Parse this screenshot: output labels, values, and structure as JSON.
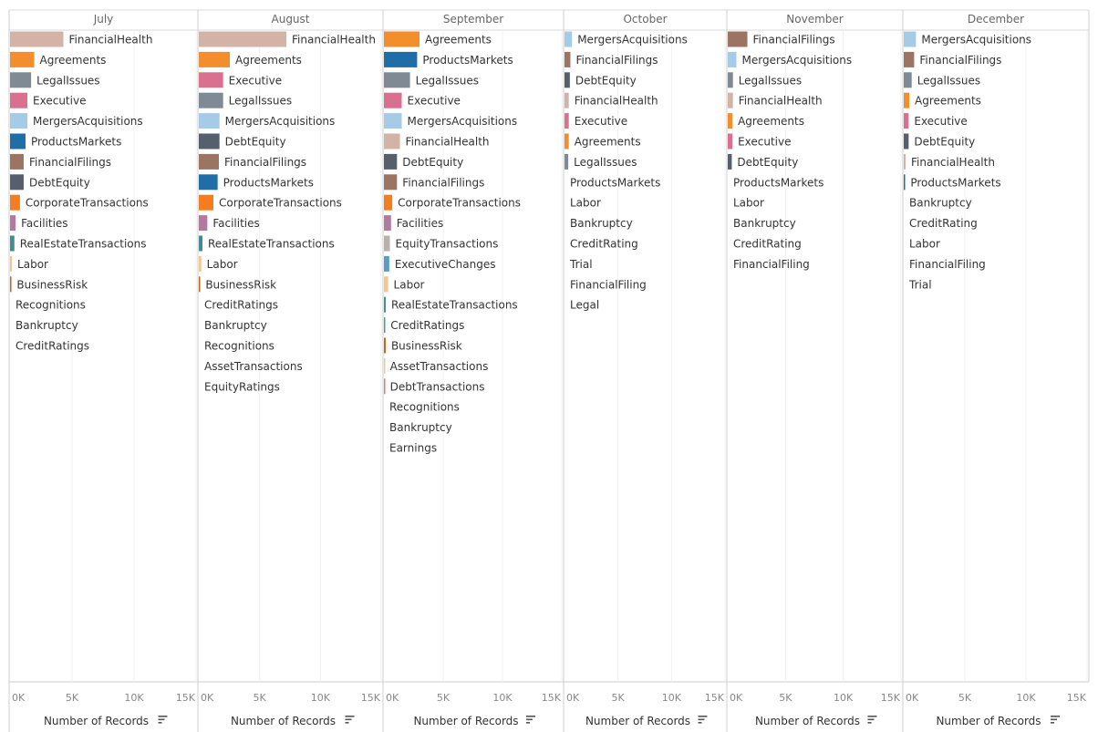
{
  "colors": {
    "FinancialHealth": "#d4b3a7",
    "Agreements": "#f28e2b",
    "LegalIssues": "#7f8a94",
    "Executive": "#d9708f",
    "MergersAcquisitions": "#a6cbe6",
    "ProductsMarkets": "#1f6ea8",
    "FinancialFilings": "#9c7462",
    "DebtEquity": "#56606c",
    "CorporateTransactions": "#f57d1f",
    "Facilities": "#b07aa1",
    "RealEstateTransactions": "#3c8f8a",
    "Labor": "#f8c48c",
    "BusinessRisk": "#c8621a",
    "EquityTransactions": "#bab0ac",
    "ExecutiveChanges": "#5b9bc7",
    "CreditRatings": "#4e9a98",
    "AssetTransactions": "#e8c9a9",
    "DebtTransactions": "#e07a88"
  },
  "chart_data": {
    "type": "bar",
    "orientation": "horizontal",
    "xlabel": "Number of Records",
    "xlim": [
      0,
      15000
    ],
    "ticks": [
      0,
      5000,
      10000,
      15000
    ],
    "tick_labels": [
      "0K",
      "5K",
      "10K",
      "15K"
    ],
    "grid": true,
    "panels": [
      {
        "month": "July",
        "bars": [
          {
            "category": "FinancialHealth",
            "value": 4300
          },
          {
            "category": "Agreements",
            "value": 1950
          },
          {
            "category": "LegalIssues",
            "value": 1700
          },
          {
            "category": "Executive",
            "value": 1400
          },
          {
            "category": "MergersAcquisitions",
            "value": 1400
          },
          {
            "category": "ProductsMarkets",
            "value": 1250
          },
          {
            "category": "FinancialFilings",
            "value": 1100
          },
          {
            "category": "DebtEquity",
            "value": 1100
          },
          {
            "category": "CorporateTransactions",
            "value": 800
          },
          {
            "category": "Facilities",
            "value": 450
          },
          {
            "category": "RealEstateTransactions",
            "value": 350
          },
          {
            "category": "Labor",
            "value": 150
          },
          {
            "category": "BusinessRisk",
            "value": 100
          },
          {
            "category": "Recognitions",
            "value": 0
          },
          {
            "category": "Bankruptcy",
            "value": 0
          },
          {
            "category": "CreditRatings",
            "value": 0
          }
        ]
      },
      {
        "month": "August",
        "bars": [
          {
            "category": "FinancialHealth",
            "value": 7200
          },
          {
            "category": "Agreements",
            "value": 2550
          },
          {
            "category": "Executive",
            "value": 2000
          },
          {
            "category": "LegalIssues",
            "value": 2000
          },
          {
            "category": "MergersAcquisitions",
            "value": 1700
          },
          {
            "category": "DebtEquity",
            "value": 1700
          },
          {
            "category": "FinancialFilings",
            "value": 1650
          },
          {
            "category": "ProductsMarkets",
            "value": 1550
          },
          {
            "category": "CorporateTransactions",
            "value": 1200
          },
          {
            "category": "Facilities",
            "value": 700
          },
          {
            "category": "RealEstateTransactions",
            "value": 300
          },
          {
            "category": "Labor",
            "value": 200
          },
          {
            "category": "BusinessRisk",
            "value": 100
          },
          {
            "category": "CreditRatings",
            "value": 0
          },
          {
            "category": "Bankruptcy",
            "value": 0
          },
          {
            "category": "Recognitions",
            "value": 0
          },
          {
            "category": "AssetTransactions",
            "value": 0
          },
          {
            "category": "EquityRatings",
            "value": 0
          }
        ]
      },
      {
        "month": "September",
        "bars": [
          {
            "category": "Agreements",
            "value": 3000
          },
          {
            "category": "ProductsMarkets",
            "value": 2800
          },
          {
            "category": "LegalIssues",
            "value": 2200
          },
          {
            "category": "Executive",
            "value": 1500
          },
          {
            "category": "MergersAcquisitions",
            "value": 1500
          },
          {
            "category": "FinancialHealth",
            "value": 1350
          },
          {
            "category": "DebtEquity",
            "value": 1100
          },
          {
            "category": "FinancialFilings",
            "value": 1100
          },
          {
            "category": "CorporateTransactions",
            "value": 700
          },
          {
            "category": "Facilities",
            "value": 600
          },
          {
            "category": "EquityTransactions",
            "value": 500
          },
          {
            "category": "ExecutiveChanges",
            "value": 450
          },
          {
            "category": "Labor",
            "value": 350
          },
          {
            "category": "RealEstateTransactions",
            "value": 150
          },
          {
            "category": "CreditRatings",
            "value": 100
          },
          {
            "category": "BusinessRisk",
            "value": 150
          },
          {
            "category": "AssetTransactions",
            "value": 50
          },
          {
            "category": "DebtTransactions",
            "value": 50
          },
          {
            "category": "Recognitions",
            "value": 0
          },
          {
            "category": "Bankruptcy",
            "value": 0
          },
          {
            "category": "Earnings",
            "value": 0
          }
        ]
      },
      {
        "month": "October",
        "bars": [
          {
            "category": "MergersAcquisitions",
            "value": 700
          },
          {
            "category": "FinancialFilings",
            "value": 550
          },
          {
            "category": "DebtEquity",
            "value": 500
          },
          {
            "category": "FinancialHealth",
            "value": 400
          },
          {
            "category": "Executive",
            "value": 400
          },
          {
            "category": "Agreements",
            "value": 400
          },
          {
            "category": "LegalIssues",
            "value": 350
          },
          {
            "category": "ProductsMarkets",
            "value": 0
          },
          {
            "category": "Labor",
            "value": 0
          },
          {
            "category": "Bankruptcy",
            "value": 0
          },
          {
            "category": "CreditRating",
            "value": 0
          },
          {
            "category": "Trial",
            "value": 0
          },
          {
            "category": "FinancialFiling",
            "value": 0
          },
          {
            "category": "Legal",
            "value": 0
          }
        ]
      },
      {
        "month": "November",
        "bars": [
          {
            "category": "FinancialFilings",
            "value": 1700
          },
          {
            "category": "MergersAcquisitions",
            "value": 750
          },
          {
            "category": "LegalIssues",
            "value": 450
          },
          {
            "category": "FinancialHealth",
            "value": 450
          },
          {
            "category": "Agreements",
            "value": 400
          },
          {
            "category": "Executive",
            "value": 400
          },
          {
            "category": "DebtEquity",
            "value": 350
          },
          {
            "category": "ProductsMarkets",
            "value": 0
          },
          {
            "category": "Labor",
            "value": 0
          },
          {
            "category": "Bankruptcy",
            "value": 0
          },
          {
            "category": "CreditRating",
            "value": 0
          },
          {
            "category": "FinancialFiling",
            "value": 0
          }
        ]
      },
      {
        "month": "December",
        "bars": [
          {
            "category": "MergersAcquisitions",
            "value": 1000
          },
          {
            "category": "FinancialFilings",
            "value": 850
          },
          {
            "category": "LegalIssues",
            "value": 650
          },
          {
            "category": "Agreements",
            "value": 450
          },
          {
            "category": "Executive",
            "value": 400
          },
          {
            "category": "DebtEquity",
            "value": 400
          },
          {
            "category": "FinancialHealth",
            "value": 150
          },
          {
            "category": "ProductsMarkets",
            "value": 100
          },
          {
            "category": "Bankruptcy",
            "value": 0
          },
          {
            "category": "CreditRating",
            "value": 0
          },
          {
            "category": "Labor",
            "value": 0
          },
          {
            "category": "FinancialFiling",
            "value": 0
          },
          {
            "category": "Trial",
            "value": 0
          }
        ]
      }
    ]
  }
}
